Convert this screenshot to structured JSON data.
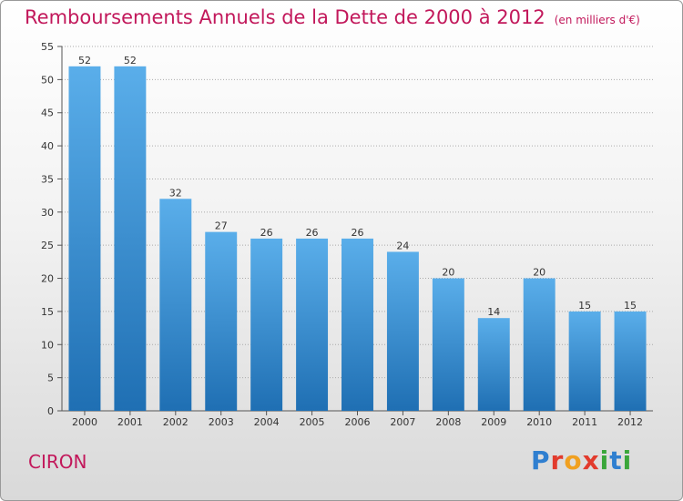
{
  "title": "Remboursements Annuels de la Dette de 2000 à 2012",
  "unit": "(en milliers d'€)",
  "town": "CIRON",
  "logo": {
    "text": "Proxiti",
    "letter_colors": [
      "#2f7fd0",
      "#e23b2d",
      "#f0a020",
      "#e23b2d",
      "#3aa63a",
      "#2f7fd0",
      "#3aa63a"
    ]
  },
  "colors": {
    "bar_top": "#5aaeea",
    "bar_bottom": "#1f6fb3",
    "title": "#c2185b",
    "grid": "#aaaaaa"
  },
  "chart_data": {
    "type": "bar",
    "categories": [
      "2000",
      "2001",
      "2002",
      "2003",
      "2004",
      "2005",
      "2006",
      "2007",
      "2008",
      "2009",
      "2010",
      "2011",
      "2012"
    ],
    "values": [
      52,
      52,
      32,
      27,
      26,
      26,
      26,
      24,
      20,
      14,
      20,
      15,
      15
    ],
    "ylim": [
      0,
      55
    ],
    "yticks": [
      0,
      5,
      10,
      15,
      20,
      25,
      30,
      35,
      40,
      45,
      50,
      55
    ],
    "data_labels": true,
    "grid": true
  }
}
